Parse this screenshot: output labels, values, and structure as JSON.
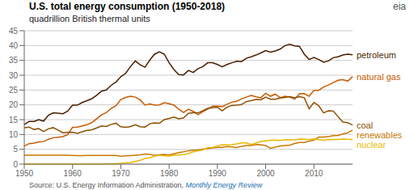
{
  "chart_data": {
    "type": "line",
    "title": "U.S. total energy consumption (1950-2018)",
    "subtitle": "quadrillion British thermal units",
    "annotations": [
      "Source: U.S. Energy Information Administration, ",
      "Monthly Energy Review",
      "eia"
    ],
    "x": [
      1950,
      1951,
      1952,
      1953,
      1954,
      1955,
      1956,
      1957,
      1958,
      1959,
      1960,
      1961,
      1962,
      1963,
      1964,
      1965,
      1966,
      1967,
      1968,
      1969,
      1970,
      1971,
      1972,
      1973,
      1974,
      1975,
      1976,
      1977,
      1978,
      1979,
      1980,
      1981,
      1982,
      1983,
      1984,
      1985,
      1986,
      1987,
      1988,
      1989,
      1990,
      1991,
      1992,
      1993,
      1994,
      1995,
      1996,
      1997,
      1998,
      1999,
      2000,
      2001,
      2002,
      2003,
      2004,
      2005,
      2006,
      2007,
      2008,
      2009,
      2010,
      2011,
      2012,
      2013,
      2014,
      2015,
      2016,
      2017,
      2018
    ],
    "xlim": [
      1950,
      2018
    ],
    "xticks": [
      1950,
      1960,
      1970,
      1980,
      1990,
      2000,
      2010
    ],
    "ylim": [
      0,
      45
    ],
    "yticks": [
      0,
      5,
      10,
      15,
      20,
      25,
      30,
      35,
      40,
      45
    ],
    "grid": true,
    "series": [
      {
        "name": "petroleum",
        "color": "#4a1f00",
        "values": [
          13.3,
          14.4,
          14.4,
          15.0,
          14.5,
          16.5,
          17.3,
          17.2,
          17.0,
          17.9,
          19.9,
          19.9,
          20.8,
          21.4,
          22.1,
          23.2,
          24.6,
          25.0,
          26.6,
          27.7,
          29.5,
          30.6,
          32.9,
          34.8,
          33.5,
          32.7,
          35.1,
          37.1,
          37.9,
          37.1,
          34.2,
          31.9,
          30.2,
          30.1,
          31.6,
          30.9,
          32.2,
          32.9,
          34.2,
          34.2,
          33.6,
          32.8,
          33.6,
          34.2,
          34.7,
          34.6,
          35.7,
          36.2,
          36.8,
          37.5,
          38.3,
          37.8,
          38.2,
          38.8,
          40.0,
          40.4,
          39.9,
          39.7,
          37.1,
          35.3,
          36.0,
          35.3,
          34.4,
          34.8,
          35.9,
          36.2,
          36.8,
          37.1,
          36.9
        ]
      },
      {
        "name": "natural gas",
        "color": "#c85a00",
        "values": [
          6.1,
          6.9,
          7.1,
          7.5,
          7.6,
          8.4,
          8.9,
          9.1,
          9.3,
          10.0,
          12.4,
          12.5,
          12.9,
          13.3,
          14.0,
          15.3,
          16.6,
          17.4,
          18.8,
          19.7,
          21.8,
          22.5,
          22.9,
          22.6,
          21.7,
          19.9,
          20.3,
          19.9,
          20.0,
          20.7,
          20.4,
          19.9,
          18.5,
          17.4,
          18.5,
          17.8,
          16.7,
          17.7,
          18.6,
          19.6,
          19.6,
          19.4,
          20.2,
          20.9,
          21.2,
          22.0,
          22.6,
          23.2,
          22.7,
          22.4,
          23.9,
          22.9,
          23.6,
          22.4,
          22.9,
          22.6,
          21.9,
          23.7,
          23.8,
          22.9,
          24.9,
          24.9,
          26.0,
          26.7,
          27.5,
          28.3,
          28.5,
          28.0,
          29.5
        ]
      },
      {
        "name": "coal",
        "color": "#8b5000",
        "values": [
          12.3,
          12.5,
          11.7,
          12.0,
          11.0,
          11.9,
          12.3,
          11.5,
          10.6,
          10.7,
          10.8,
          10.4,
          10.9,
          11.4,
          11.6,
          12.2,
          12.9,
          12.7,
          13.4,
          13.8,
          12.6,
          12.4,
          12.7,
          13.3,
          12.6,
          12.5,
          13.6,
          13.9,
          13.8,
          15.0,
          15.4,
          15.9,
          15.3,
          15.6,
          17.1,
          17.4,
          17.3,
          18.0,
          18.8,
          19.0,
          19.2,
          18.0,
          19.2,
          19.8,
          19.9,
          20.1,
          21.1,
          21.4,
          21.8,
          21.7,
          22.6,
          21.9,
          21.9,
          22.3,
          22.5,
          22.8,
          22.4,
          22.8,
          22.4,
          18.7,
          20.8,
          19.7,
          17.3,
          18.0,
          17.9,
          16.0,
          14.2,
          14.0,
          13.2
        ]
      },
      {
        "name": "renewables",
        "color": "#c87800",
        "values": [
          2.97,
          2.97,
          2.97,
          2.97,
          2.97,
          2.97,
          2.97,
          2.97,
          2.97,
          2.97,
          2.93,
          2.87,
          2.87,
          2.9,
          2.9,
          2.92,
          2.93,
          2.93,
          2.95,
          2.93,
          2.65,
          2.82,
          2.86,
          3.0,
          3.15,
          3.39,
          3.26,
          3.0,
          3.12,
          3.25,
          3.07,
          3.48,
          3.86,
          4.15,
          4.53,
          4.71,
          4.77,
          5.05,
          5.27,
          5.44,
          5.64,
          5.67,
          5.93,
          5.8,
          5.62,
          6.03,
          6.24,
          6.25,
          6.63,
          6.55,
          6.27,
          5.33,
          5.74,
          6.15,
          6.26,
          6.4,
          6.95,
          7.27,
          7.3,
          7.75,
          8.08,
          9.13,
          9.14,
          9.24,
          9.63,
          9.69,
          10.16,
          10.55,
          11.51
        ]
      },
      {
        "name": "nuclear",
        "color": "#e6b800",
        "values": [
          0.0,
          0.0,
          0.0,
          0.0,
          0.0,
          0.0,
          0.0,
          0.0,
          0.0,
          0.0,
          0.01,
          0.02,
          0.03,
          0.04,
          0.04,
          0.04,
          0.06,
          0.09,
          0.14,
          0.15,
          0.24,
          0.41,
          0.54,
          0.91,
          1.27,
          1.9,
          2.13,
          2.7,
          3.02,
          2.78,
          2.74,
          3.01,
          3.13,
          3.2,
          3.55,
          4.15,
          4.47,
          4.75,
          5.58,
          5.67,
          6.1,
          6.54,
          6.48,
          6.52,
          6.84,
          7.18,
          7.17,
          6.6,
          7.07,
          7.61,
          7.86,
          8.03,
          8.14,
          7.97,
          8.22,
          8.16,
          8.21,
          8.46,
          8.41,
          8.35,
          8.43,
          8.26,
          8.05,
          8.27,
          8.33,
          8.34,
          8.43,
          8.42,
          8.26
        ]
      }
    ]
  }
}
